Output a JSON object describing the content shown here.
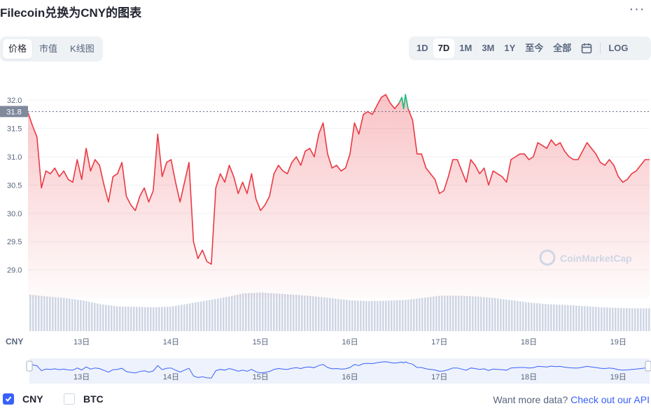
{
  "title": "Filecoin兑换为CNY的图表",
  "more_icon": "more-horizontal-icon",
  "view_tabs": [
    "价格",
    "市值",
    "K线图"
  ],
  "active_view": "价格",
  "ranges": [
    "1D",
    "7D",
    "1M",
    "3M",
    "1Y",
    "至今",
    "全部"
  ],
  "active_range": "7D",
  "calendar_icon": "calendar-icon",
  "log_label": "LOG",
  "watermark": "CoinMarketCap",
  "currency_label": "CNY",
  "toggles": [
    {
      "label": "CNY",
      "checked": true
    },
    {
      "label": "BTC",
      "checked": false
    }
  ],
  "footer": {
    "text": "Want more data?",
    "link": "Check out our API"
  },
  "colors": {
    "line": "#ea3943",
    "up": "#16c784",
    "volume": "#cfd6e4",
    "navigator": "#3861fb",
    "accent": "#3861fb"
  },
  "chart_data": {
    "type": "line",
    "ylim": [
      28.5,
      32.2
    ],
    "yticks": [
      29.0,
      29.5,
      30.0,
      30.5,
      31.0,
      31.5,
      32.0
    ],
    "ytick_labels": [
      "29.0",
      "29.5",
      "30.0",
      "30.5",
      "31.0",
      "31.5",
      "32.0"
    ],
    "reference_value": 31.8,
    "reference_label": "31.8",
    "xlim": [
      12.4,
      19.35
    ],
    "xticks": [
      13,
      14,
      15,
      16,
      17,
      18,
      19
    ],
    "xtick_labels": [
      "13日",
      "14日",
      "15日",
      "16日",
      "17日",
      "18日",
      "19日"
    ],
    "series": [
      {
        "x": [
          12.4,
          12.45,
          12.5,
          12.55,
          12.6,
          12.65,
          12.7,
          12.75,
          12.8,
          12.85,
          12.9,
          12.95,
          13.0,
          13.05,
          13.1,
          13.15,
          13.2,
          13.25,
          13.3,
          13.35,
          13.4,
          13.45,
          13.5,
          13.55,
          13.6,
          13.65,
          13.7,
          13.75,
          13.8,
          13.85,
          13.9,
          13.95,
          14.0,
          14.05,
          14.1,
          14.15,
          14.2,
          14.25,
          14.3,
          14.35,
          14.4,
          14.45,
          14.5,
          14.55,
          14.6,
          14.65,
          14.7,
          14.75,
          14.8,
          14.85,
          14.9,
          14.95,
          15.0,
          15.05,
          15.1,
          15.15,
          15.2,
          15.25,
          15.3,
          15.35,
          15.4,
          15.45,
          15.5,
          15.55,
          15.6,
          15.65,
          15.7,
          15.75,
          15.8,
          15.85,
          15.9,
          15.95,
          16.0,
          16.05,
          16.1,
          16.15,
          16.2,
          16.25,
          16.3,
          16.35,
          16.4,
          16.45,
          16.5,
          16.55,
          16.58,
          16.6,
          16.62,
          16.65,
          16.7,
          16.75,
          16.8,
          16.85,
          16.9,
          16.95,
          17.0,
          17.05,
          17.1,
          17.15,
          17.2,
          17.25,
          17.3,
          17.35,
          17.4,
          17.45,
          17.5,
          17.55,
          17.6,
          17.65,
          17.7,
          17.75,
          17.8,
          17.85,
          17.9,
          17.95,
          18.0,
          18.05,
          18.1,
          18.15,
          18.2,
          18.25,
          18.3,
          18.35,
          18.4,
          18.45,
          18.5,
          18.55,
          18.6,
          18.65,
          18.7,
          18.75,
          18.8,
          18.85,
          18.9,
          18.95,
          19.0,
          19.05,
          19.1,
          19.15,
          19.2,
          19.25,
          19.3,
          19.35
        ],
        "y": [
          31.78,
          31.55,
          31.35,
          30.45,
          30.75,
          30.7,
          30.8,
          30.65,
          30.75,
          30.6,
          30.55,
          30.95,
          30.6,
          31.15,
          30.75,
          30.95,
          30.85,
          30.5,
          30.2,
          30.65,
          30.7,
          30.9,
          30.3,
          30.15,
          30.05,
          30.3,
          30.45,
          30.2,
          30.4,
          31.4,
          30.65,
          30.9,
          30.95,
          30.55,
          30.2,
          30.55,
          30.9,
          29.5,
          29.2,
          29.35,
          29.15,
          29.1,
          30.45,
          30.7,
          30.55,
          30.85,
          30.65,
          30.35,
          30.55,
          30.35,
          30.7,
          30.25,
          30.05,
          30.15,
          30.3,
          30.7,
          30.85,
          30.75,
          30.7,
          30.9,
          31.0,
          30.85,
          31.1,
          31.15,
          31.0,
          31.4,
          31.6,
          31.05,
          30.8,
          30.85,
          30.75,
          30.8,
          31.05,
          31.6,
          31.4,
          31.75,
          31.8,
          31.75,
          31.9,
          32.05,
          32.1,
          31.95,
          31.85,
          31.95,
          32.05,
          31.85,
          32.1,
          31.85,
          31.65,
          31.05,
          31.05,
          30.8,
          30.7,
          30.6,
          30.35,
          30.4,
          30.65,
          30.95,
          30.95,
          30.75,
          30.55,
          30.95,
          30.85,
          30.7,
          30.8,
          30.5,
          30.75,
          30.7,
          30.65,
          30.55,
          30.95,
          31.0,
          31.05,
          31.05,
          30.95,
          31.0,
          31.25,
          31.2,
          31.15,
          31.3,
          31.2,
          31.25,
          31.1,
          31.0,
          30.95,
          30.95,
          31.1,
          31.25,
          31.15,
          31.05,
          30.9,
          30.85,
          30.95,
          30.85,
          30.65,
          30.55,
          30.6,
          30.7,
          30.75,
          30.85,
          30.95,
          30.95
        ],
        "up_segment_from": 16.55
      }
    ],
    "volume": {
      "x": [
        12.4,
        12.6,
        12.8,
        13.0,
        13.2,
        13.4,
        13.6,
        13.8,
        14.0,
        14.2,
        14.4,
        14.6,
        14.8,
        15.0,
        15.2,
        15.4,
        15.6,
        15.8,
        16.0,
        16.2,
        16.4,
        16.6,
        16.8,
        17.0,
        17.2,
        17.4,
        17.6,
        17.8,
        18.0,
        18.2,
        18.4,
        18.6,
        18.8,
        19.0,
        19.2,
        19.35
      ],
      "values": [
        0.95,
        0.9,
        0.86,
        0.8,
        0.7,
        0.64,
        0.63,
        0.62,
        0.64,
        0.72,
        0.8,
        0.88,
        0.98,
        1.0,
        0.97,
        0.94,
        0.9,
        0.85,
        0.8,
        0.78,
        0.79,
        0.81,
        0.86,
        0.92,
        0.92,
        0.9,
        0.86,
        0.8,
        0.74,
        0.7,
        0.68,
        0.65,
        0.62,
        0.6,
        0.59,
        0.59
      ]
    }
  }
}
